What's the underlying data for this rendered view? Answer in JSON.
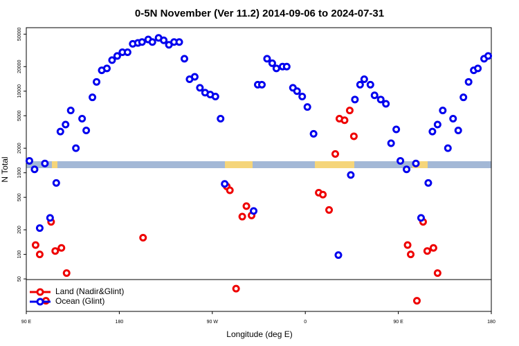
{
  "chart_data": {
    "type": "scatter",
    "title": "0-5N November (Ver 11.2)   2014-09-06 to 2024-07-31",
    "xlabel": "Longitude (deg E)",
    "ylabel": "N Total",
    "log_y": true,
    "legend": "lower left",
    "xlim": [
      90,
      540
    ],
    "ylim": [
      20,
      60000
    ],
    "xticks": [
      {
        "value": 90,
        "label": "90 E"
      },
      180,
      {
        "value": 270,
        "label": "90 W"
      },
      {
        "value": 360,
        "label": "0"
      },
      {
        "value": 450,
        "label": "90 E"
      },
      {
        "value": 540,
        "label": "180"
      }
    ],
    "yticks": [
      50,
      100,
      200,
      500,
      1000,
      2000,
      5000,
      10000,
      20000,
      50000
    ],
    "series": [
      {
        "name": "Land (Nadir&Glint)",
        "color": "#ee0000",
        "x": [
          99,
          103,
          114,
          118,
          124,
          129,
          203,
          284,
          287,
          299,
          303,
          308,
          373,
          377,
          383,
          389,
          393,
          398,
          403,
          407,
          459,
          462,
          474,
          478,
          484,
          488,
          293,
          109,
          468
        ],
        "values": [
          130,
          100,
          250,
          110,
          120,
          59,
          160,
          680,
          610,
          290,
          390,
          300,
          570,
          540,
          350,
          1700,
          4600,
          4400,
          5800,
          2800,
          130,
          100,
          250,
          110,
          120,
          59,
          38,
          27,
          27
        ]
      },
      {
        "name": "Ocean (Glint)",
        "color": "#0000ee",
        "x": [
          93,
          98,
          103,
          108,
          113,
          119,
          123,
          128,
          133,
          138,
          144,
          148,
          154,
          158,
          163,
          168,
          173,
          178,
          183,
          188,
          193,
          198,
          202,
          208,
          212,
          218,
          223,
          228,
          233,
          238,
          243,
          248,
          253,
          258,
          263,
          268,
          273,
          278,
          282,
          310,
          314,
          318,
          323,
          328,
          332,
          338,
          342,
          348,
          352,
          357,
          362,
          368,
          392,
          404,
          408,
          413,
          417,
          423,
          427,
          433,
          438,
          443,
          448,
          452,
          458,
          467,
          472,
          479,
          483,
          488,
          493,
          498,
          503,
          508,
          513,
          518,
          523,
          527,
          533,
          537
        ],
        "values": [
          1400,
          1100,
          210,
          1300,
          280,
          750,
          3200,
          3900,
          5800,
          2000,
          4600,
          3300,
          8400,
          13000,
          18000,
          19000,
          24000,
          27000,
          30000,
          30000,
          38000,
          39000,
          40000,
          43000,
          40000,
          45000,
          42000,
          37000,
          40000,
          40000,
          25000,
          14000,
          15000,
          11000,
          9600,
          9100,
          8600,
          4600,
          730,
          340,
          12000,
          12000,
          25000,
          22000,
          19000,
          20000,
          20000,
          11000,
          10000,
          8600,
          6400,
          3000,
          98,
          940,
          7900,
          12000,
          14000,
          12000,
          8900,
          7900,
          7000,
          2300,
          3400,
          1400,
          1100,
          1300,
          280,
          750,
          3200,
          3900,
          5800,
          2000,
          4600,
          3300,
          8400,
          13000,
          18000,
          19000,
          25000,
          27000
        ]
      }
    ]
  }
}
